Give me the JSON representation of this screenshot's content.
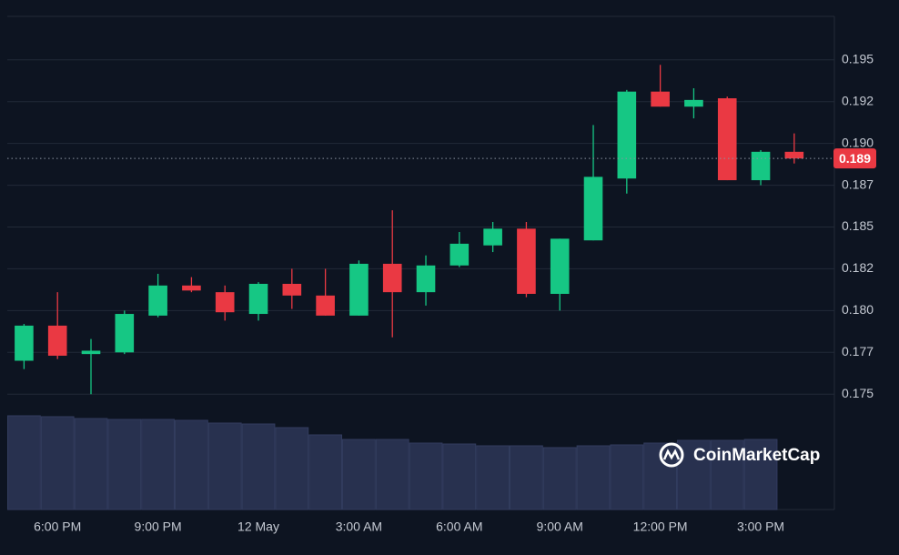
{
  "chart_data": {
    "type": "candlestick",
    "categories": [
      null,
      "6:00 PM",
      null,
      null,
      "9:00 PM",
      null,
      null,
      "12 May",
      null,
      null,
      "3:00 AM",
      null,
      null,
      "6:00 AM",
      null,
      null,
      "9:00 AM",
      null,
      null,
      "12:00 PM",
      null,
      null,
      "3:00 PM",
      null
    ],
    "open": [
      0.177,
      0.1791,
      0.1774,
      0.1775,
      0.1797,
      0.1815,
      0.1811,
      0.1798,
      0.1816,
      0.1809,
      0.1797,
      0.1828,
      0.1811,
      0.1827,
      0.1839,
      0.1849,
      0.181,
      0.1842,
      0.1879,
      0.1931,
      0.1922,
      0.1927,
      0.1878,
      0.1895
    ],
    "high": [
      0.1792,
      0.1811,
      0.1783,
      0.18,
      0.1822,
      0.182,
      0.1815,
      0.1817,
      0.1825,
      0.1825,
      0.183,
      0.186,
      0.1833,
      0.1847,
      0.1853,
      0.1853,
      0.1843,
      0.1911,
      0.1932,
      0.1947,
      0.1933,
      0.1928,
      0.1896,
      0.1906
    ],
    "low": [
      0.1765,
      0.1771,
      0.175,
      0.1774,
      0.1796,
      0.1811,
      0.1794,
      0.1794,
      0.1801,
      0.1797,
      0.1797,
      0.1784,
      0.1803,
      0.1826,
      0.1835,
      0.1808,
      0.18,
      0.1842,
      0.187,
      0.1922,
      0.1915,
      0.1878,
      0.1875,
      0.1888
    ],
    "close": [
      0.1791,
      0.1773,
      0.1776,
      0.1798,
      0.1815,
      0.1812,
      0.1799,
      0.1816,
      0.1809,
      0.1797,
      0.1828,
      0.1811,
      0.1827,
      0.184,
      0.1849,
      0.181,
      0.1843,
      0.188,
      0.1931,
      0.1922,
      0.1926,
      0.1878,
      0.1895,
      0.1891
    ],
    "volume": [
      103,
      102,
      100,
      99,
      99,
      98,
      95,
      94,
      90,
      82,
      77,
      77,
      73,
      72,
      70,
      70,
      68,
      70,
      71,
      73,
      76,
      76,
      77,
      null
    ],
    "up_color": "#16c784",
    "down_color": "#ea3943",
    "volume_color": "#28314f",
    "ylim": [
      0.1681,
      0.1976
    ],
    "yticks": [
      {
        "value": 0.175,
        "label": "0.175"
      },
      {
        "value": 0.1775,
        "label": "0.177"
      },
      {
        "value": 0.18,
        "label": "0.180"
      },
      0.185,
      {
        "value": 0.1825,
        "label": "0.182"
      },
      {
        "value": 0.1875,
        "label": "0.187"
      },
      {
        "value": 0.19,
        "label": "0.190"
      },
      {
        "value": 0.1925,
        "label": "0.192"
      },
      0.195
    ],
    "current_price": {
      "value": 0.1891,
      "label": "0.189"
    },
    "watermark": "CoinMarketCap",
    "grid": true
  }
}
